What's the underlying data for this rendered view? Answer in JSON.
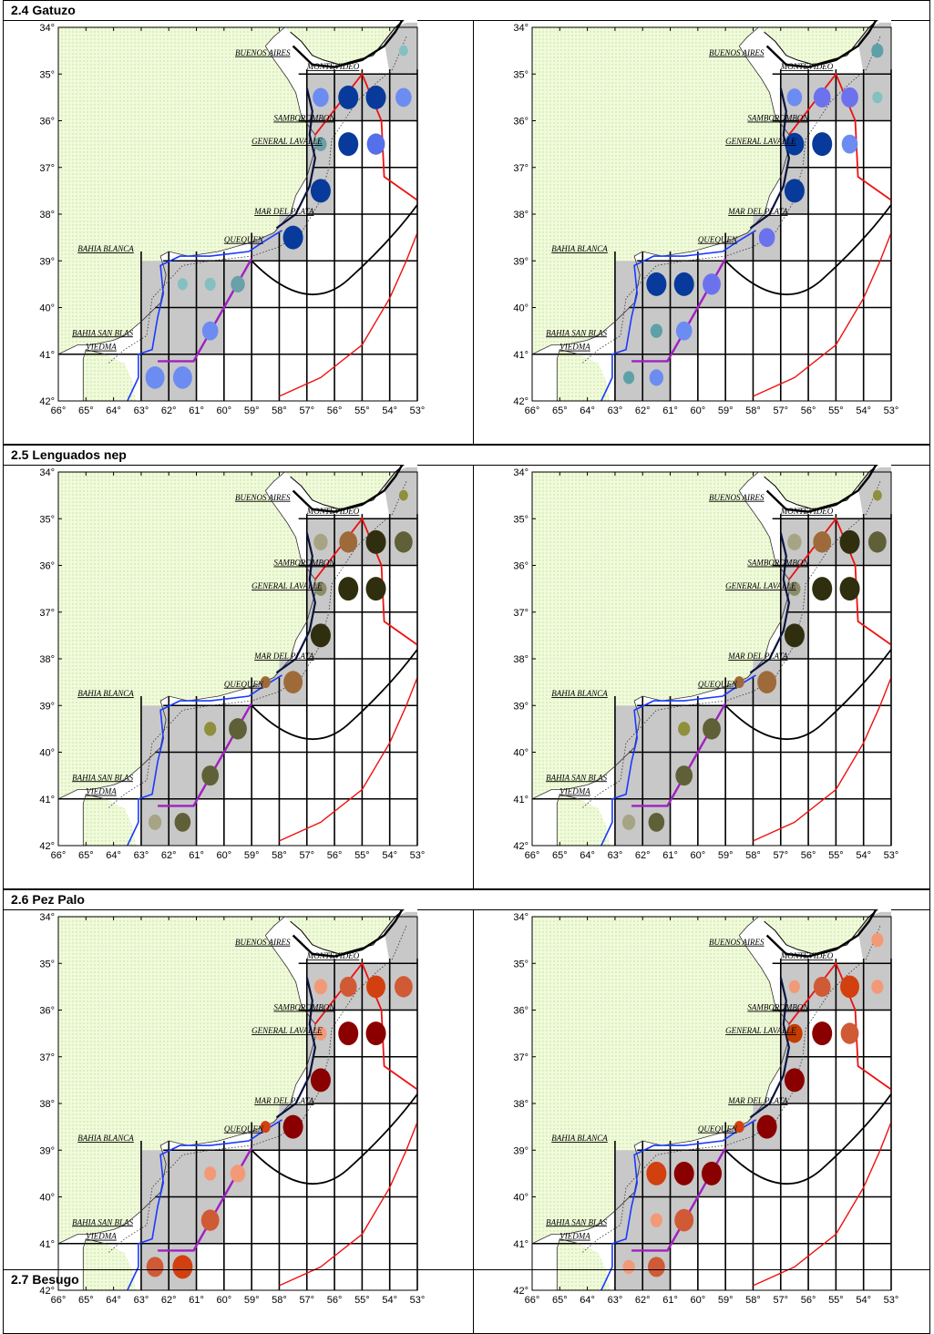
{
  "sections": [
    {
      "title": "2.4 Gatuzo",
      "maps": [
        {
          "dots": [
            [
              -55.5,
              -35.5,
              "#073a9a",
              1.0
            ],
            [
              -54.5,
              -35.5,
              "#073a9a",
              1.0
            ],
            [
              -53.5,
              -35.5,
              "#6c8cf2",
              0.8
            ],
            [
              -56.5,
              -35.5,
              "#6c8cf2",
              0.8
            ],
            [
              -53.5,
              -34.5,
              "#84c0c0",
              0.45
            ],
            [
              -55.5,
              -36.5,
              "#073a9a",
              1.0
            ],
            [
              -54.5,
              -36.5,
              "#5570e8",
              0.9
            ],
            [
              -56.5,
              -36.5,
              "#6aa0a8",
              0.6
            ],
            [
              -56.5,
              -37.5,
              "#073a9a",
              1.0
            ],
            [
              -57.5,
              -38.5,
              "#073a9a",
              1.0
            ],
            [
              -59.5,
              -39.5,
              "#6aa0a8",
              0.7
            ],
            [
              -60.5,
              -39.5,
              "#84c0c0",
              0.55
            ],
            [
              -61.5,
              -39.5,
              "#84c0c0",
              0.5
            ],
            [
              -60.5,
              -40.5,
              "#6c8cf2",
              0.8
            ],
            [
              -62.5,
              -41.5,
              "#6c8cf2",
              0.95
            ],
            [
              -61.5,
              -41.5,
              "#6c8cf2",
              0.95
            ]
          ]
        },
        {
          "dots": [
            [
              -55.5,
              -35.5,
              "#6c72ee",
              0.85
            ],
            [
              -54.5,
              -35.5,
              "#6c72ee",
              0.85
            ],
            [
              -56.5,
              -35.5,
              "#6c8cf2",
              0.75
            ],
            [
              -53.5,
              -35.5,
              "#84c0c0",
              0.5
            ],
            [
              -53.5,
              -34.5,
              "#5ea0a8",
              0.6
            ],
            [
              -55.5,
              -36.5,
              "#073a9a",
              1.0
            ],
            [
              -54.5,
              -36.5,
              "#6c8cf2",
              0.8
            ],
            [
              -56.5,
              -36.5,
              "#073a9a",
              0.95
            ],
            [
              -56.5,
              -37.5,
              "#073a9a",
              1.0
            ],
            [
              -57.5,
              -38.5,
              "#6c72ee",
              0.8
            ],
            [
              -59.5,
              -39.5,
              "#6c72ee",
              0.9
            ],
            [
              -60.5,
              -39.5,
              "#073a9a",
              1.0
            ],
            [
              -61.5,
              -39.5,
              "#073a9a",
              1.0
            ],
            [
              -61.5,
              -40.5,
              "#5ea0a8",
              0.6
            ],
            [
              -60.5,
              -40.5,
              "#6c8cf2",
              0.8
            ],
            [
              -62.5,
              -41.5,
              "#5ea0a8",
              0.55
            ],
            [
              -61.5,
              -41.5,
              "#6c8cf2",
              0.7
            ]
          ]
        }
      ]
    },
    {
      "title": "2.5 Lenguados nep",
      "maps": [
        {
          "dots": [
            [
              -55.5,
              -35.5,
              "#9e6a3a",
              0.9
            ],
            [
              -54.5,
              -35.5,
              "#2f2f10",
              1.0
            ],
            [
              -53.5,
              -35.5,
              "#606038",
              0.9
            ],
            [
              -56.5,
              -35.5,
              "#a7a485",
              0.7
            ],
            [
              -53.5,
              -34.5,
              "#8f8f3c",
              0.45
            ],
            [
              -55.5,
              -36.5,
              "#2f2f10",
              1.0
            ],
            [
              -54.5,
              -36.5,
              "#2f2f10",
              1.0
            ],
            [
              -56.5,
              -36.5,
              "#8d8c6a",
              0.6
            ],
            [
              -56.5,
              -37.5,
              "#2f2f10",
              1.0
            ],
            [
              -57.5,
              -38.5,
              "#9e6a3a",
              0.95
            ],
            [
              -58.5,
              -38.5,
              "#9e6a3a",
              0.5
            ],
            [
              -59.5,
              -39.5,
              "#606038",
              0.9
            ],
            [
              -60.5,
              -39.5,
              "#8f8f3c",
              0.6
            ],
            [
              -60.5,
              -40.5,
              "#606038",
              0.85
            ],
            [
              -62.5,
              -41.5,
              "#a7a485",
              0.65
            ],
            [
              -61.5,
              -41.5,
              "#606038",
              0.8
            ]
          ]
        },
        {
          "dots": [
            [
              -55.5,
              -35.5,
              "#9e6a3a",
              0.9
            ],
            [
              -54.5,
              -35.5,
              "#2f2f10",
              1.0
            ],
            [
              -53.5,
              -35.5,
              "#606038",
              0.9
            ],
            [
              -56.5,
              -35.5,
              "#a7a485",
              0.7
            ],
            [
              -53.5,
              -34.5,
              "#8f8f3c",
              0.45
            ],
            [
              -55.5,
              -36.5,
              "#2f2f10",
              1.0
            ],
            [
              -54.5,
              -36.5,
              "#2f2f10",
              1.0
            ],
            [
              -56.5,
              -36.5,
              "#8d8c6a",
              0.6
            ],
            [
              -56.5,
              -37.5,
              "#2f2f10",
              1.0
            ],
            [
              -57.5,
              -38.5,
              "#9e6a3a",
              0.95
            ],
            [
              -58.5,
              -38.5,
              "#9e6a3a",
              0.5
            ],
            [
              -59.5,
              -39.5,
              "#606038",
              0.9
            ],
            [
              -60.5,
              -39.5,
              "#8f8f3c",
              0.6
            ],
            [
              -60.5,
              -40.5,
              "#606038",
              0.85
            ],
            [
              -62.5,
              -41.5,
              "#a7a485",
              0.65
            ],
            [
              -61.5,
              -41.5,
              "#606038",
              0.8
            ]
          ]
        }
      ]
    },
    {
      "title": "2.6 Pez Palo",
      "maps": [
        {
          "dots": [
            [
              -55.5,
              -35.5,
              "#d05a36",
              0.85
            ],
            [
              -54.5,
              -35.5,
              "#d24010",
              0.95
            ],
            [
              -53.5,
              -35.5,
              "#d05a36",
              0.9
            ],
            [
              -56.5,
              -35.5,
              "#f29a78",
              0.65
            ],
            [
              -55.5,
              -36.5,
              "#8a0000",
              1.0
            ],
            [
              -54.5,
              -36.5,
              "#8a0000",
              1.0
            ],
            [
              -56.5,
              -36.5,
              "#f29a78",
              0.6
            ],
            [
              -56.5,
              -37.5,
              "#8a0000",
              1.0
            ],
            [
              -57.5,
              -38.5,
              "#8a0000",
              1.0
            ],
            [
              -58.5,
              -38.5,
              "#d24010",
              0.5
            ],
            [
              -59.5,
              -39.5,
              "#f29a78",
              0.75
            ],
            [
              -60.5,
              -39.5,
              "#f29a78",
              0.6
            ],
            [
              -60.5,
              -40.5,
              "#d05a36",
              0.9
            ],
            [
              -62.5,
              -41.5,
              "#d05a36",
              0.85
            ],
            [
              -61.5,
              -41.5,
              "#d24010",
              1.0
            ]
          ]
        },
        {
          "dots": [
            [
              -55.5,
              -35.5,
              "#d05a36",
              0.85
            ],
            [
              -54.5,
              -35.5,
              "#d24010",
              0.95
            ],
            [
              -53.5,
              -35.5,
              "#f29a78",
              0.6
            ],
            [
              -56.5,
              -35.5,
              "#f29a78",
              0.55
            ],
            [
              -53.5,
              -34.5,
              "#f29a78",
              0.6
            ],
            [
              -55.5,
              -36.5,
              "#8a0000",
              1.0
            ],
            [
              -54.5,
              -36.5,
              "#d05a36",
              0.9
            ],
            [
              -56.5,
              -36.5,
              "#c43c00",
              0.8
            ],
            [
              -56.5,
              -37.5,
              "#8a0000",
              1.0
            ],
            [
              -57.5,
              -38.5,
              "#8a0000",
              1.0
            ],
            [
              -58.5,
              -38.5,
              "#d24010",
              0.5
            ],
            [
              -59.5,
              -39.5,
              "#8a0000",
              1.0
            ],
            [
              -60.5,
              -39.5,
              "#8a0000",
              1.0
            ],
            [
              -61.5,
              -39.5,
              "#d24010",
              1.0
            ],
            [
              -61.5,
              -40.5,
              "#f29a78",
              0.6
            ],
            [
              -60.5,
              -40.5,
              "#d05a36",
              0.95
            ],
            [
              -62.5,
              -41.5,
              "#f29a78",
              0.6
            ],
            [
              -61.5,
              -41.5,
              "#d05a36",
              0.85
            ]
          ]
        }
      ]
    },
    {
      "title": "2.7 Besugo",
      "maps": []
    }
  ],
  "map": {
    "lon_min": -66,
    "lon_max": -53,
    "lat_max": -34,
    "lat_min": -42,
    "lon_tick_labels": [
      "66°",
      "65°",
      "64°",
      "63°",
      "62°",
      "61°",
      "60°",
      "59°",
      "58°",
      "57°",
      "56°",
      "55°",
      "54°",
      "53°"
    ],
    "lat_tick_labels": [
      "34°",
      "35°",
      "36°",
      "37°",
      "38°",
      "39°",
      "40°",
      "41°",
      "42°"
    ],
    "place_labels": [
      {
        "text": "BUENOS AIRES",
        "lon": -59.6,
        "lat": -34.6
      },
      {
        "text": "MONTEVIDEO",
        "lon": -57.0,
        "lat": -34.9
      },
      {
        "text": "SAMBOROMBON",
        "lon": -58.2,
        "lat": -36.0
      },
      {
        "text": "GENERAL LAVALLE",
        "lon": -59.0,
        "lat": -36.5
      },
      {
        "text": "MAR DEL PLATA",
        "lon": -58.9,
        "lat": -38.0
      },
      {
        "text": "QUEQUEN",
        "lon": -60.0,
        "lat": -38.6
      },
      {
        "text": "BAHIA BLANCA",
        "lon": -65.3,
        "lat": -38.8
      },
      {
        "text": "BAHIA SAN BLAS",
        "lon": -65.5,
        "lat": -40.6
      },
      {
        "text": "VIEDMA",
        "lon": -65.0,
        "lat": -40.9
      }
    ],
    "colors": {
      "land": "#f0fadc",
      "land_dot": "#c2e08c",
      "shaded": "#c8c8c8",
      "sea": "#ffffff",
      "purple": "#a020c0",
      "river": "#1a3aff",
      "red": "#ee1111"
    }
  }
}
